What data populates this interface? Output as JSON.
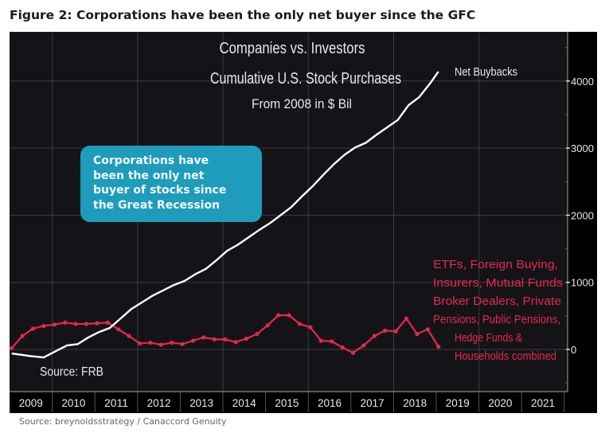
{
  "figure_title": "Figure 2: Corporations have been the only net buyer since the GFC",
  "source_note": "Source: breynoldsstrategy / Canaccord Genuity",
  "colors": {
    "background": "#000000",
    "plot_background": "#141418",
    "net_buybacks": "#ffffff",
    "others": "#e8264f",
    "others_label": "#e8264f",
    "callout": "#1f9cbb",
    "grid": "#3a3a40",
    "text": "#e8e8e8"
  },
  "callout": {
    "lines": [
      "Corporations have",
      "been the only net",
      "buyer of stocks since",
      "the Great Recession"
    ]
  },
  "chart_data": {
    "type": "line",
    "title": "Companies vs. Investors",
    "subtitle": [
      "Cumulative U.S. Stock Purchases",
      "From 2008 in $ Bil"
    ],
    "xlabel": "",
    "ylabel": "",
    "annotation_source": "Source: FRB",
    "x_tick_labels": [
      "2009",
      "2010",
      "2011",
      "2012",
      "2013",
      "2014",
      "2015",
      "2016",
      "2017",
      "2018",
      "2019",
      "2020",
      "2021"
    ],
    "xlim": [
      2009.0,
      2022.0
    ],
    "ylim": [
      -300,
      4600
    ],
    "y_ticks": [
      0,
      1000,
      2000,
      3000,
      4000
    ],
    "y_tick_labels": [
      "0",
      "1000",
      "2000",
      "3000",
      "4000"
    ],
    "y_axis_side": "right",
    "grid": true,
    "series": [
      {
        "name": "Net Buybacks",
        "label": "Net Buybacks",
        "markers": false,
        "x": [
          2009.05,
          2009.5,
          2009.8,
          2010.1,
          2010.35,
          2010.6,
          2010.85,
          2011.1,
          2011.35,
          2011.6,
          2011.85,
          2012.1,
          2012.35,
          2012.6,
          2012.85,
          2013.1,
          2013.35,
          2013.6,
          2013.85,
          2014.1,
          2014.35,
          2014.6,
          2014.85,
          2015.1,
          2015.35,
          2015.6,
          2015.85,
          2016.1,
          2016.35,
          2016.6,
          2016.85,
          2017.1,
          2017.35,
          2017.6,
          2017.85,
          2018.1,
          2018.35,
          2018.6,
          2018.85,
          2019.05
        ],
        "values": [
          -60,
          -100,
          -120,
          -20,
          60,
          80,
          180,
          260,
          320,
          460,
          600,
          700,
          800,
          880,
          960,
          1020,
          1120,
          1200,
          1330,
          1470,
          1560,
          1670,
          1780,
          1880,
          2000,
          2120,
          2280,
          2430,
          2600,
          2760,
          2900,
          3010,
          3080,
          3200,
          3310,
          3420,
          3640,
          3760,
          3960,
          4140
        ]
      },
      {
        "name": "ETFs, Foreign Buying, Insurers, Mutual Funds Broker Dealers, Private Pensions, Public Pensions, Hedge Funds & Households combined",
        "label_lines": [
          "ETFs, Foreign Buying,",
          "Insurers, Mutual Funds",
          "Broker Dealers, Private",
          "Pensions, Public Pensions,",
          "Hedge Funds &",
          "Households combined"
        ],
        "markers": true,
        "x": [
          2009.05,
          2009.3,
          2009.55,
          2009.8,
          2010.05,
          2010.3,
          2010.55,
          2010.8,
          2011.05,
          2011.3,
          2011.55,
          2011.8,
          2012.05,
          2012.3,
          2012.55,
          2012.8,
          2013.05,
          2013.3,
          2013.55,
          2013.8,
          2014.05,
          2014.3,
          2014.55,
          2014.8,
          2015.05,
          2015.3,
          2015.55,
          2015.8,
          2016.05,
          2016.3,
          2016.55,
          2016.8,
          2017.05,
          2017.3,
          2017.55,
          2017.8,
          2018.05,
          2018.3,
          2018.55,
          2018.8,
          2019.05
        ],
        "values": [
          20,
          200,
          310,
          350,
          370,
          400,
          380,
          380,
          390,
          400,
          300,
          200,
          90,
          100,
          70,
          100,
          80,
          130,
          180,
          150,
          150,
          110,
          160,
          230,
          360,
          510,
          510,
          380,
          330,
          130,
          120,
          30,
          -50,
          60,
          200,
          280,
          270,
          460,
          230,
          300,
          40
        ]
      }
    ]
  }
}
